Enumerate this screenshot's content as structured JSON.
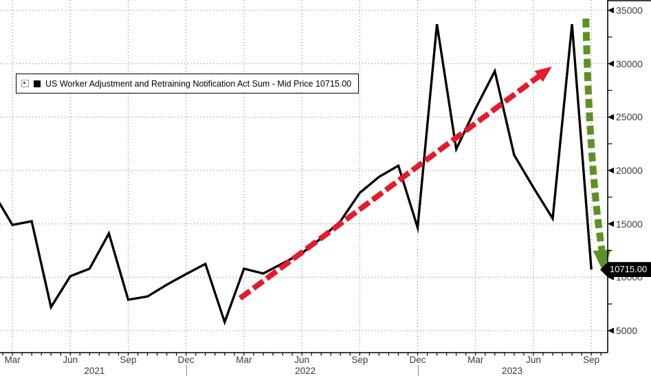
{
  "legend": {
    "series_label": "US Worker Adjustment and Retraining Notification Act Sum - Mid Price 10715.00",
    "marker_color": "#000000"
  },
  "last_price_badge": {
    "text": "10715.00",
    "bg": "#000000",
    "fg": "#ffffff"
  },
  "colors": {
    "line": "#000000",
    "grid": "#8c8c8c",
    "axis": "#000000",
    "tick_label": "#3a3a3a",
    "red_arrow": "#e31b2b",
    "green_arrow": "#5e9125"
  },
  "chart_data": {
    "type": "line",
    "title": "US Worker Adjustment and Retraining Notification Act Sum - Mid Price",
    "last_price": 10715.0,
    "legend_position": "top-left",
    "grid": "dotted",
    "x": [
      "Feb 2021",
      "Mar 2021",
      "Apr 2021",
      "May 2021",
      "Jun 2021",
      "Jul 2021",
      "Aug 2021",
      "Sep 2021",
      "Oct 2021",
      "Nov 2021",
      "Dec 2021",
      "Jan 2022",
      "Feb 2022",
      "Mar 2022",
      "Apr 2022",
      "May 2022",
      "Jun 2022",
      "Jul 2022",
      "Aug 2022",
      "Sep 2022",
      "Oct 2022",
      "Nov 2022",
      "Dec 2022",
      "Jan 2023",
      "Feb 2023",
      "Mar 2023",
      "Apr 2023",
      "May 2023",
      "Jun 2023",
      "Jul 2023",
      "Aug 2023",
      "Sep 2023"
    ],
    "values": [
      17950,
      14900,
      15250,
      7200,
      10100,
      10800,
      14100,
      7900,
      8200,
      9300,
      10300,
      11250,
      5800,
      10800,
      10350,
      11300,
      12250,
      13650,
      15250,
      17900,
      19400,
      20450,
      14650,
      33700,
      22000,
      25800,
      29300,
      21450,
      18400,
      15500,
      33700,
      10715
    ],
    "ylim": [
      3000,
      36000
    ],
    "y_ticks": [
      5000,
      10000,
      15000,
      20000,
      25000,
      30000,
      35000
    ],
    "y_minor_step": 2500,
    "x_ticks": [
      {
        "index": 1,
        "label": "Mar"
      },
      {
        "index": 4,
        "label": "Jun"
      },
      {
        "index": 7,
        "label": "Sep"
      },
      {
        "index": 10,
        "label": "Dec"
      },
      {
        "index": 13,
        "label": "Mar"
      },
      {
        "index": 16,
        "label": "Jun"
      },
      {
        "index": 19,
        "label": "Sep"
      },
      {
        "index": 22,
        "label": "Dec"
      },
      {
        "index": 25,
        "label": "Mar"
      },
      {
        "index": 28,
        "label": "Jun"
      },
      {
        "index": 31,
        "label": "Sep"
      }
    ],
    "year_labels": [
      {
        "label": "2021",
        "index": 5.25
      },
      {
        "label": "2022",
        "index": 16.18
      },
      {
        "label": "2023",
        "index": 26.9
      }
    ],
    "year_separator_indices": [
      10,
      22
    ],
    "annotations": [
      {
        "name": "uptrend-arrow",
        "type": "arrow",
        "style": "dashed",
        "color": "#e31b2b",
        "curve": false,
        "from": {
          "index": 12.8,
          "value": 8030
        },
        "to": {
          "index": 28.96,
          "value": 29730
        }
      },
      {
        "name": "collapse-arrow",
        "type": "arrow",
        "style": "dashed",
        "color": "#5e9125",
        "curve": true,
        "from": {
          "index": 30.72,
          "value": 34230
        },
        "to": {
          "index": 31.63,
          "value": 10480
        }
      }
    ]
  }
}
